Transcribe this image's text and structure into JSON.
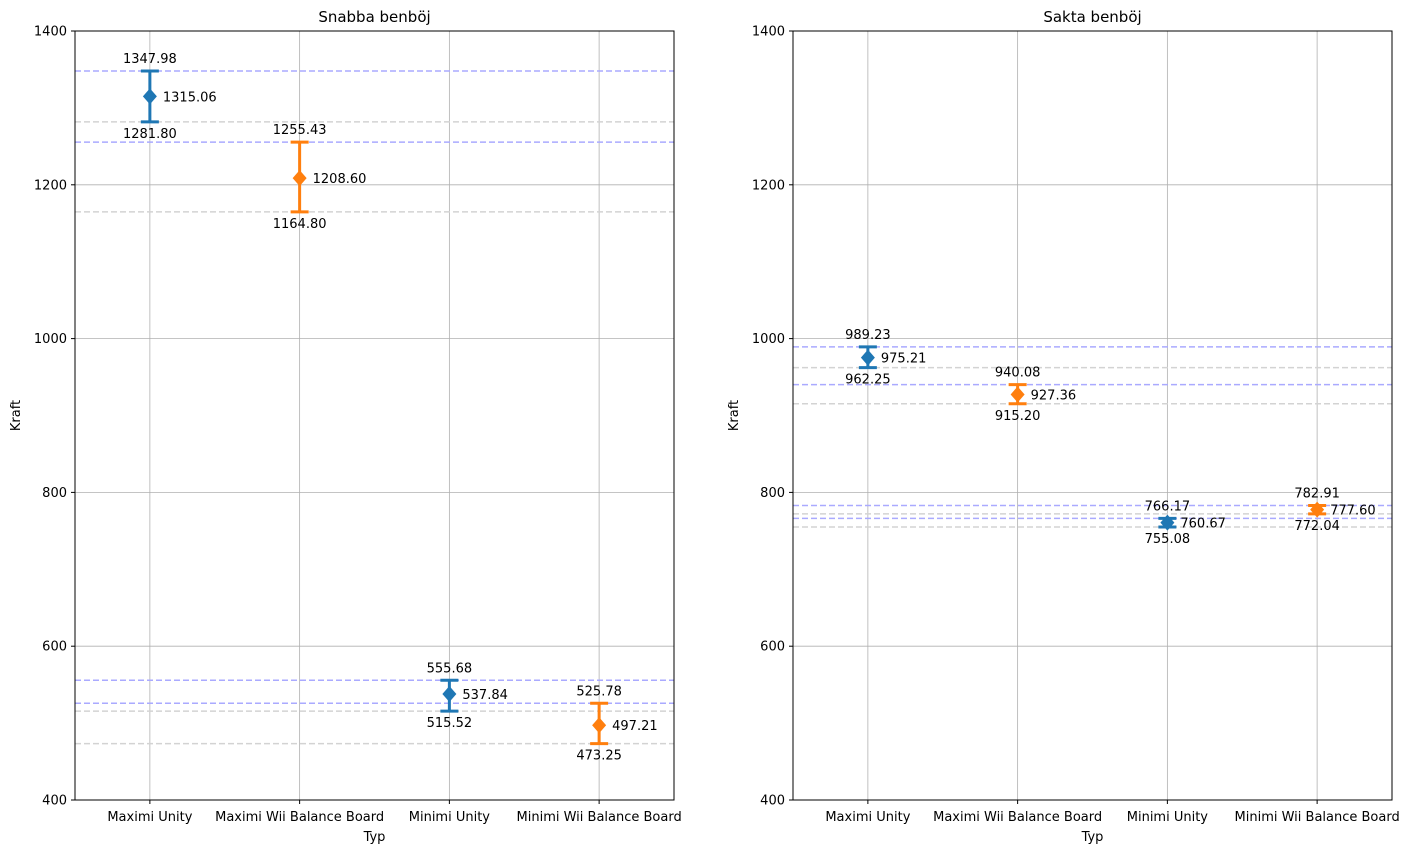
{
  "chart_data": [
    {
      "type": "errorbar",
      "title": "Snabba benböj",
      "xlabel": "Typ",
      "ylabel": "Kraft",
      "ylim": [
        400,
        1400
      ],
      "yticks": [
        400,
        600,
        800,
        1000,
        1200,
        1400
      ],
      "grid": true,
      "categories": [
        "Maximi Unity",
        "Maximi Wii Balance Board",
        "Minimi Unity",
        "Minimi Wii Balance Board"
      ],
      "points": [
        {
          "category": "Maximi Unity",
          "mean": 1315.06,
          "upper": 1347.98,
          "lower": 1281.8,
          "mean_label": "1315.06",
          "upper_label": "1347.98",
          "lower_label": "1281.80",
          "color": "#1f77b4"
        },
        {
          "category": "Maximi Wii Balance Board",
          "mean": 1208.6,
          "upper": 1255.43,
          "lower": 1164.8,
          "mean_label": "1208.60",
          "upper_label": "1255.43",
          "lower_label": "1164.80",
          "color": "#ff7f0e"
        },
        {
          "category": "Minimi Unity",
          "mean": 537.84,
          "upper": 555.68,
          "lower": 515.52,
          "mean_label": "537.84",
          "upper_label": "555.68",
          "lower_label": "515.52",
          "color": "#1f77b4"
        },
        {
          "category": "Minimi Wii Balance Board",
          "mean": 497.21,
          "upper": 525.78,
          "lower": 473.25,
          "mean_label": "497.21",
          "upper_label": "525.78",
          "lower_label": "473.25",
          "color": "#ff7f0e"
        }
      ],
      "reference_line_colors": {
        "upper": "#aaaaff",
        "lower": "#d3d3d3"
      }
    },
    {
      "type": "errorbar",
      "title": "Sakta benböj",
      "xlabel": "Typ",
      "ylabel": "Kraft",
      "ylim": [
        400,
        1400
      ],
      "yticks": [
        400,
        600,
        800,
        1000,
        1200,
        1400
      ],
      "grid": true,
      "categories": [
        "Maximi Unity",
        "Maximi Wii Balance Board",
        "Minimi Unity",
        "Minimi Wii Balance Board"
      ],
      "points": [
        {
          "category": "Maximi Unity",
          "mean": 975.21,
          "upper": 989.23,
          "lower": 962.25,
          "mean_label": "975.21",
          "upper_label": "989.23",
          "lower_label": "962.25",
          "color": "#1f77b4"
        },
        {
          "category": "Maximi Wii Balance Board",
          "mean": 927.36,
          "upper": 940.08,
          "lower": 915.2,
          "mean_label": "927.36",
          "upper_label": "940.08",
          "lower_label": "915.20",
          "color": "#ff7f0e"
        },
        {
          "category": "Minimi Unity",
          "mean": 760.67,
          "upper": 766.17,
          "lower": 755.08,
          "mean_label": "760.67",
          "upper_label": "766.17",
          "lower_label": "755.08",
          "color": "#1f77b4"
        },
        {
          "category": "Minimi Wii Balance Board",
          "mean": 777.6,
          "upper": 782.91,
          "lower": 772.04,
          "mean_label": "777.60",
          "upper_label": "782.91",
          "lower_label": "772.04",
          "color": "#ff7f0e"
        }
      ],
      "reference_line_colors": {
        "upper": "#aaaaff",
        "lower": "#d3d3d3"
      }
    }
  ]
}
